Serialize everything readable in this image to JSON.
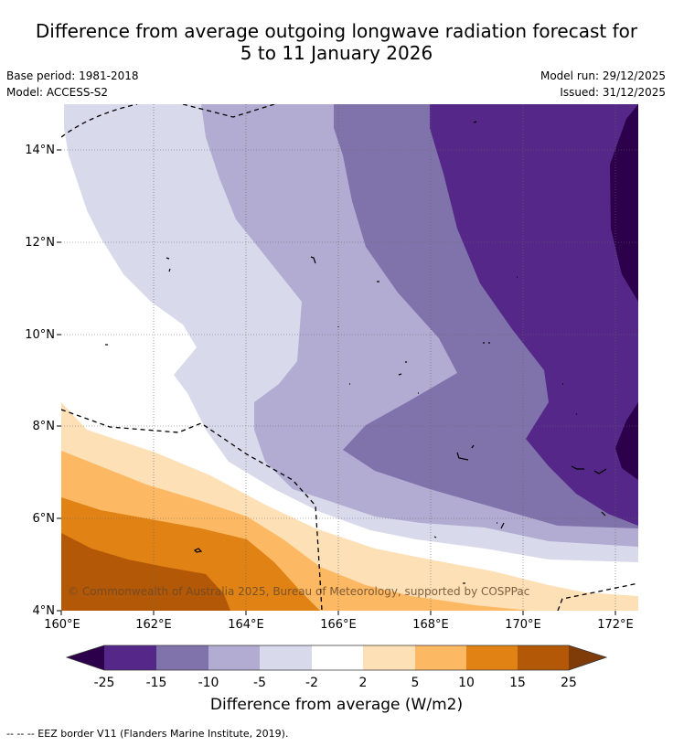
{
  "header": {
    "title_line1": "Difference from average outgoing longwave radiation forecast for",
    "title_line2": "5 to 11 January 2026",
    "base_period": "Base period: 1981-2018",
    "model": "Model: ACCESS-S2",
    "model_run": "Model run: 29/12/2025",
    "issued": "Issued: 31/12/2025"
  },
  "map": {
    "lat_labels": [
      "14°N",
      "12°N",
      "10°N",
      "8°N",
      "6°N",
      "4°N"
    ],
    "lon_labels": [
      "160°E",
      "162°E",
      "164°E",
      "166°E",
      "168°E",
      "170°E",
      "172°E"
    ],
    "copyright": "© Commonwealth of Australia 2025, Bureau of Meteorology, supported by COSPPac"
  },
  "colorbar": {
    "labels": [
      "-25",
      "-15",
      "-10",
      "-5",
      "-2",
      "2",
      "5",
      "10",
      "15",
      "25"
    ],
    "colors": [
      "#2d004b",
      "#542788",
      "#8073ac",
      "#b2abd2",
      "#d8daeb",
      "#ffffff",
      "#fee0b6",
      "#fdb863",
      "#e08214",
      "#b35806",
      "#7f3b08"
    ],
    "unit_label": "Difference from average (W/m2)"
  },
  "footnote": "--  --  -- EEZ border V11 (Flanders Marine Institute, 2019)."
}
